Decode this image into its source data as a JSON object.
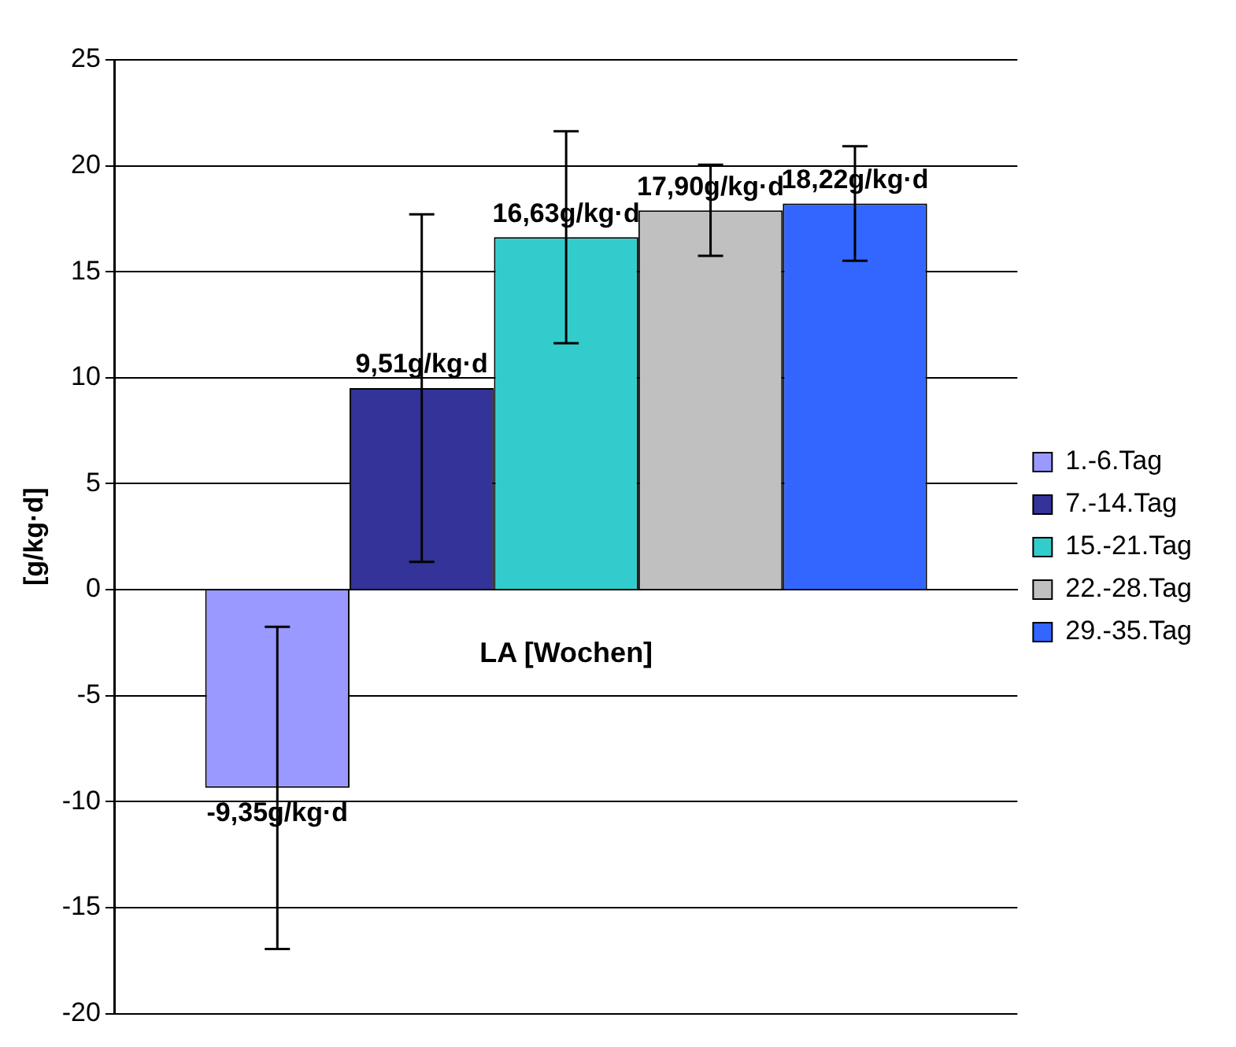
{
  "chart_data": {
    "type": "bar",
    "categories": [
      "LA [Wochen]"
    ],
    "ylabel": "[g/kg·d]",
    "ylim": [
      -20,
      25
    ],
    "yticks": [
      -20,
      -15,
      -10,
      -5,
      0,
      5,
      10,
      15,
      20,
      25
    ],
    "grid": "y",
    "legend": "right",
    "series": [
      {
        "name": "1.-6.Tag",
        "color": "#9999ff",
        "values": [
          -9.35
        ],
        "errors": [
          7.6
        ],
        "value_labels": [
          "-9,35g/kg·d"
        ]
      },
      {
        "name": "7.-14.Tag",
        "color": "#333399",
        "values": [
          9.51
        ],
        "errors": [
          8.2
        ],
        "value_labels": [
          "9,51g/kg·d"
        ]
      },
      {
        "name": "15.-21.Tag",
        "color": "#33cccc",
        "values": [
          16.63
        ],
        "errors": [
          5.0
        ],
        "value_labels": [
          "16,63g/kg·d"
        ]
      },
      {
        "name": "22.-28.Tag",
        "color": "#c0c0c0",
        "values": [
          17.9
        ],
        "errors": [
          2.15
        ],
        "value_labels": [
          "17,90g/kg·d"
        ]
      },
      {
        "name": "29.-35.Tag",
        "color": "#3366ff",
        "values": [
          18.22
        ],
        "errors": [
          2.7
        ],
        "value_labels": [
          "18,22g/kg·d"
        ]
      }
    ]
  }
}
